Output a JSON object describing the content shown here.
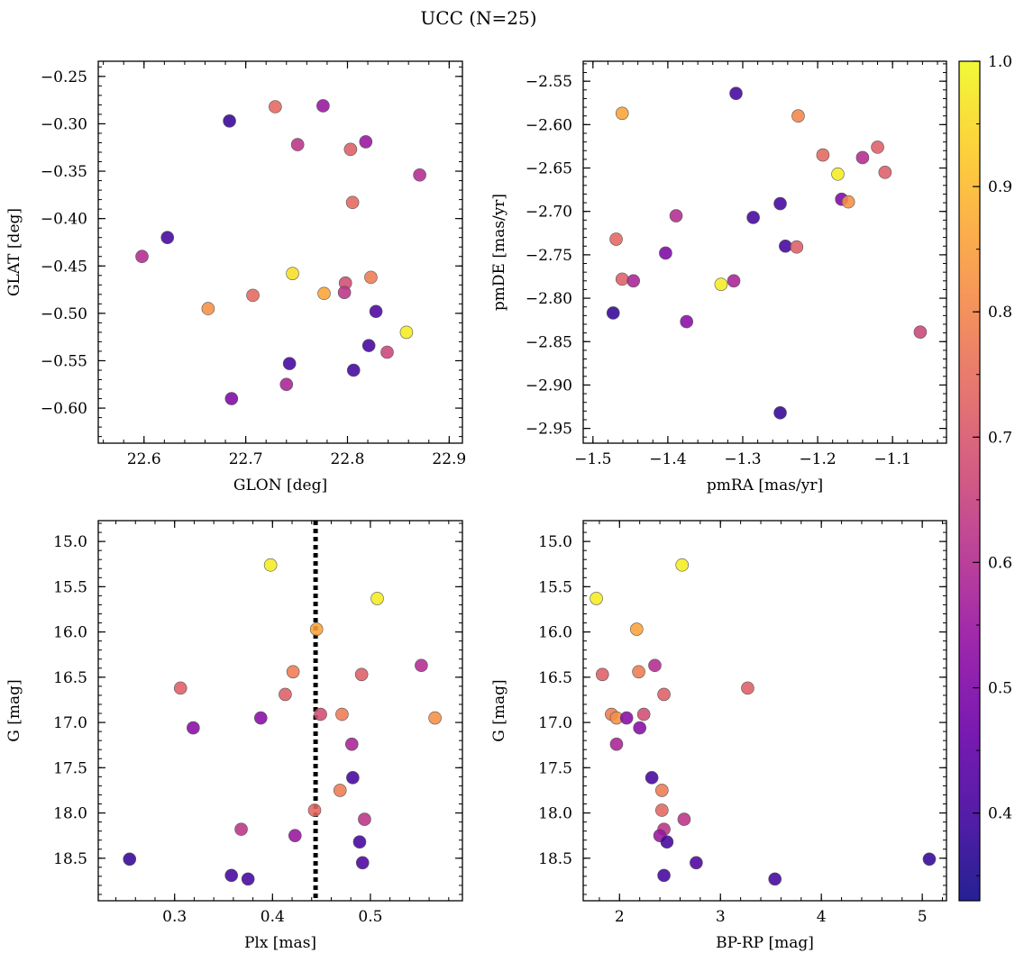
{
  "title": "UCC (N=25)",
  "colormap": {
    "name": "plasma",
    "min": 0.33,
    "max": 1.0,
    "ticks": [
      0.4,
      0.5,
      0.6,
      0.7,
      0.8,
      0.9,
      1.0
    ],
    "tick_labels": [
      "0.4",
      "0.5",
      "0.6",
      "0.7",
      "0.8",
      "0.9",
      "1.0"
    ]
  },
  "marker_edge_color": "#555555",
  "chart_data": [
    {
      "type": "scatter",
      "xlabel": "GLON [deg]",
      "ylabel": "GLAT [deg]",
      "xlim": [
        22.555,
        22.913
      ],
      "ylim": [
        -0.637,
        -0.234
      ],
      "yinvert": false,
      "xticks": [
        22.6,
        22.7,
        22.8,
        22.9
      ],
      "xtick_labels": [
        "22.6",
        "22.7",
        "22.8",
        "22.9"
      ],
      "yticks": [
        -0.6,
        -0.55,
        -0.5,
        -0.45,
        -0.4,
        -0.35,
        -0.3,
        -0.25
      ],
      "ytick_labels": [
        "−0.60",
        "−0.55",
        "−0.50",
        "−0.45",
        "−0.40",
        "−0.35",
        "−0.30",
        "−0.25"
      ],
      "x": [
        22.684,
        22.729,
        22.776,
        22.751,
        22.818,
        22.803,
        22.871,
        22.805,
        22.623,
        22.598,
        22.746,
        22.707,
        22.777,
        22.823,
        22.798,
        22.797,
        22.663,
        22.828,
        22.858,
        22.821,
        22.839,
        22.743,
        22.806,
        22.74,
        22.686
      ],
      "y": [
        -0.297,
        -0.282,
        -0.281,
        -0.322,
        -0.319,
        -0.327,
        -0.354,
        -0.383,
        -0.42,
        -0.44,
        -0.458,
        -0.481,
        -0.479,
        -0.462,
        -0.468,
        -0.478,
        -0.495,
        -0.498,
        -0.52,
        -0.534,
        -0.541,
        -0.553,
        -0.56,
        -0.575,
        -0.59
      ],
      "c": [
        0.38,
        0.74,
        0.55,
        0.62,
        0.55,
        0.72,
        0.6,
        0.74,
        0.4,
        0.6,
        0.96,
        0.74,
        0.86,
        0.78,
        0.68,
        0.62,
        0.82,
        0.42,
        0.98,
        0.4,
        0.66,
        0.4,
        0.4,
        0.58,
        0.5
      ]
    },
    {
      "type": "scatter",
      "xlabel": "pmRA [mas/yr]",
      "ylabel": "pmDE [mas/yr]",
      "xlim": [
        -1.513,
        -1.028
      ],
      "ylim": [
        -2.967,
        -2.527
      ],
      "yinvert": false,
      "xticks": [
        -1.5,
        -1.4,
        -1.3,
        -1.2,
        -1.1
      ],
      "xtick_labels": [
        "−1.5",
        "−1.4",
        "−1.3",
        "−1.2",
        "−1.1"
      ],
      "yticks": [
        -2.95,
        -2.9,
        -2.85,
        -2.8,
        -2.75,
        -2.7,
        -2.65,
        -2.6,
        -2.55
      ],
      "ytick_labels": [
        "−2.95",
        "−2.90",
        "−2.85",
        "−2.80",
        "−2.75",
        "−2.70",
        "−2.65",
        "−2.60",
        "−2.55"
      ],
      "x": [
        -1.309,
        -1.461,
        -1.226,
        -1.193,
        -1.12,
        -1.14,
        -1.11,
        -1.173,
        -1.168,
        -1.159,
        -1.389,
        -1.286,
        -1.25,
        -1.469,
        -1.403,
        -1.243,
        -1.228,
        -1.461,
        -1.446,
        -1.329,
        -1.312,
        -1.473,
        -1.375,
        -1.063,
        -1.25
      ],
      "y": [
        -2.564,
        -2.587,
        -2.59,
        -2.635,
        -2.626,
        -2.638,
        -2.655,
        -2.657,
        -2.686,
        -2.689,
        -2.705,
        -2.707,
        -2.691,
        -2.732,
        -2.748,
        -2.74,
        -2.741,
        -2.778,
        -2.78,
        -2.784,
        -2.78,
        -2.817,
        -2.827,
        -2.839,
        -2.932
      ],
      "c": [
        0.4,
        0.86,
        0.8,
        0.74,
        0.72,
        0.6,
        0.72,
        0.98,
        0.5,
        0.82,
        0.6,
        0.4,
        0.4,
        0.74,
        0.5,
        0.4,
        0.72,
        0.72,
        0.58,
        0.98,
        0.58,
        0.38,
        0.52,
        0.66,
        0.38
      ]
    },
    {
      "type": "scatter",
      "xlabel": "Plx [mas]",
      "ylabel": "G [mag]",
      "xlim": [
        0.222,
        0.594
      ],
      "ylim": [
        14.77,
        18.97
      ],
      "yinvert": true,
      "vline": 0.444,
      "xticks": [
        0.3,
        0.4,
        0.5
      ],
      "xtick_labels": [
        "0.3",
        "0.4",
        "0.5"
      ],
      "yticks": [
        15.0,
        15.5,
        16.0,
        16.5,
        17.0,
        17.5,
        18.0,
        18.5
      ],
      "ytick_labels": [
        "15.0",
        "15.5",
        "16.0",
        "16.5",
        "17.0",
        "17.5",
        "18.0",
        "18.5"
      ],
      "x": [
        0.398,
        0.507,
        0.445,
        0.421,
        0.552,
        0.306,
        0.491,
        0.413,
        0.449,
        0.471,
        0.566,
        0.388,
        0.319,
        0.481,
        0.482,
        0.469,
        0.443,
        0.494,
        0.368,
        0.423,
        0.489,
        0.254,
        0.492,
        0.358,
        0.375
      ],
      "y": [
        15.26,
        15.63,
        15.97,
        16.44,
        16.37,
        16.62,
        16.47,
        16.69,
        16.91,
        16.91,
        16.95,
        16.95,
        17.06,
        17.24,
        17.61,
        17.75,
        17.97,
        18.07,
        18.18,
        18.25,
        18.32,
        18.51,
        18.55,
        18.69,
        18.73
      ],
      "c": [
        0.98,
        0.98,
        0.86,
        0.78,
        0.6,
        0.72,
        0.72,
        0.72,
        0.68,
        0.78,
        0.82,
        0.52,
        0.52,
        0.58,
        0.4,
        0.78,
        0.74,
        0.62,
        0.62,
        0.55,
        0.4,
        0.38,
        0.42,
        0.4,
        0.4
      ]
    },
    {
      "type": "scatter",
      "xlabel": "BP-RP [mag]",
      "ylabel": "G [mag]",
      "xlim": [
        1.64,
        5.24
      ],
      "ylim": [
        14.77,
        18.97
      ],
      "yinvert": true,
      "xticks": [
        2,
        3,
        4,
        5
      ],
      "xtick_labels": [
        "2",
        "3",
        "4",
        "5"
      ],
      "yticks": [
        15.0,
        15.5,
        16.0,
        16.5,
        17.0,
        17.5,
        18.0,
        18.5
      ],
      "ytick_labels": [
        "15.0",
        "15.5",
        "16.0",
        "16.5",
        "17.0",
        "17.5",
        "18.0",
        "18.5"
      ],
      "x": [
        2.62,
        1.77,
        2.17,
        2.19,
        2.35,
        3.27,
        1.83,
        2.44,
        2.24,
        1.92,
        1.97,
        2.07,
        2.2,
        1.97,
        2.32,
        2.42,
        2.42,
        2.64,
        2.44,
        2.4,
        2.47,
        5.07,
        2.76,
        2.44,
        3.54
      ],
      "y": [
        15.26,
        15.63,
        15.97,
        16.44,
        16.37,
        16.62,
        16.47,
        16.69,
        16.91,
        16.91,
        16.95,
        16.95,
        17.06,
        17.24,
        17.61,
        17.75,
        17.97,
        18.07,
        18.18,
        18.25,
        18.32,
        18.51,
        18.55,
        18.69,
        18.73
      ],
      "c": [
        0.98,
        0.98,
        0.86,
        0.78,
        0.6,
        0.72,
        0.72,
        0.72,
        0.68,
        0.78,
        0.82,
        0.52,
        0.52,
        0.58,
        0.4,
        0.78,
        0.74,
        0.62,
        0.62,
        0.55,
        0.4,
        0.38,
        0.42,
        0.4,
        0.4
      ]
    }
  ]
}
